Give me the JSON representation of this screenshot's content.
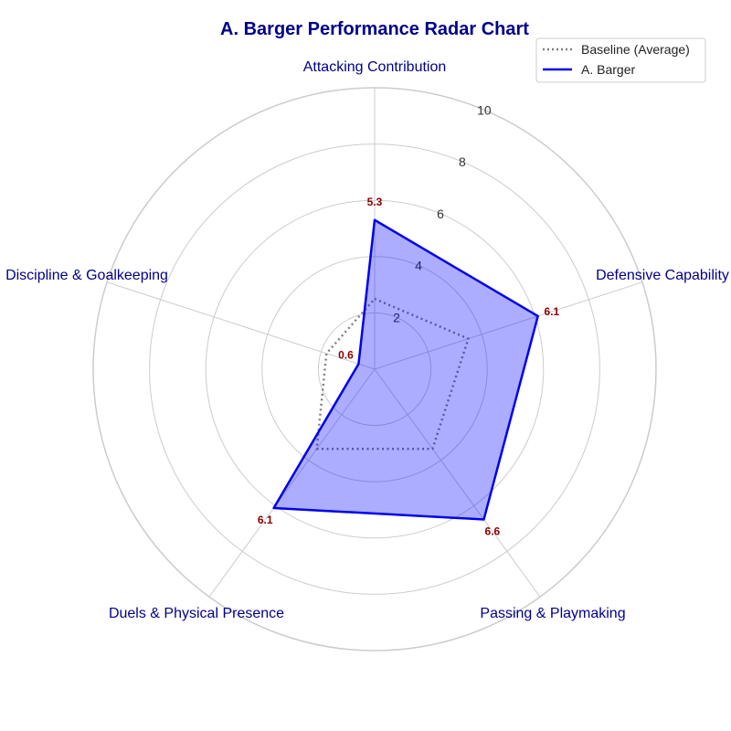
{
  "chart_data": {
    "type": "radar",
    "title": "A. Barger Performance Radar Chart",
    "categories": [
      "Attacking Contribution",
      "Defensive Capability",
      "Passing & Playmaking",
      "Duels & Physical Presence",
      "Discipline & Goalkeeping"
    ],
    "rticks": [
      "2",
      "4",
      "6",
      "8",
      "10"
    ],
    "rlim": [
      0,
      10
    ],
    "grid": true,
    "legend_position": "top-right",
    "series": [
      {
        "name": "Baseline (Average)",
        "values": [
          2.5,
          3.5,
          3.5,
          3.5,
          1.8
        ],
        "color": "#808080",
        "style": "dotted"
      },
      {
        "name": "A. Barger",
        "values": [
          5.3,
          6.1,
          6.6,
          6.1,
          0.6
        ],
        "value_labels": [
          "5.3",
          "6.1",
          "6.6",
          "6.1",
          "0.6"
        ],
        "color": "#0000ee",
        "fill": "#0000ff",
        "style": "solid"
      }
    ]
  }
}
